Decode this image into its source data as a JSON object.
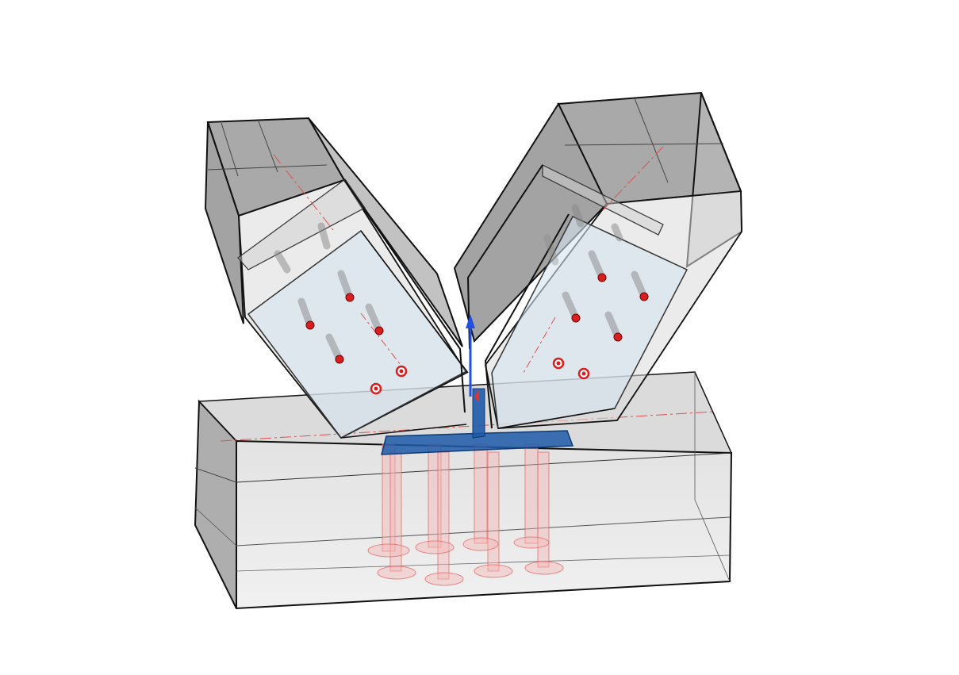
{
  "scene": {
    "description_visible_text": "",
    "colors": {
      "background": "#ffffff",
      "edge": "#111111",
      "glass_fill": "#c9c9c9",
      "glass_light": "#e6e6e6",
      "plate_fill": "#cfe0ee",
      "base_plate": "#1e5aa8",
      "anchor_red": "#e23a3a",
      "bolt_red": "#d81f1f",
      "axis_line": "#e05050",
      "axis_up": "#2050e0"
    },
    "icons": [
      "bolt-marker",
      "anchor-rod",
      "up-axis-arrow"
    ]
  }
}
